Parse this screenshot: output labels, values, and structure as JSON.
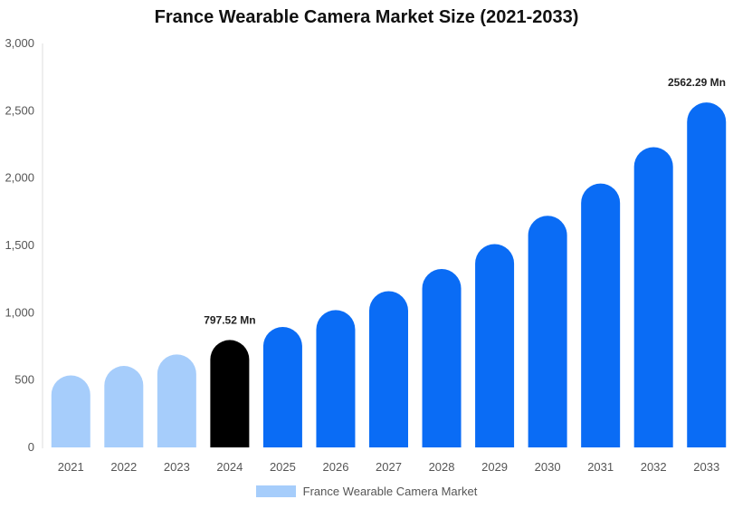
{
  "chart_data": {
    "type": "bar",
    "title": "France Wearable Camera Market Size (2021-2033)",
    "categories": [
      "2021",
      "2022",
      "2023",
      "2024",
      "2025",
      "2026",
      "2027",
      "2028",
      "2029",
      "2030",
      "2031",
      "2032",
      "2033"
    ],
    "series": [
      {
        "name": "France Wearable Camera Market",
        "values": [
          535,
          605,
          690,
          797.52,
          895,
          1020,
          1160,
          1325,
          1510,
          1720,
          1960,
          2230,
          2562.29
        ]
      }
    ],
    "ylim": [
      0,
      3000
    ],
    "yticks": [
      "0",
      "500",
      "1,000",
      "1,500",
      "2,000",
      "2,500",
      "3,000"
    ],
    "ytick_values": [
      0,
      500,
      1000,
      1500,
      2000,
      2500,
      3000
    ],
    "grid": false,
    "legend_position": "bottom",
    "annotations": [
      {
        "category": "2024",
        "text": "797.52 Mn"
      },
      {
        "category": "2033",
        "text": "2562.29 Mn"
      }
    ],
    "colors": {
      "historical": "#a6cdfb",
      "current": "#000000",
      "forecast": "#0a6cf5",
      "legend": "#a6cdfb"
    },
    "bar_color_roles": [
      "historical",
      "historical",
      "historical",
      "current",
      "forecast",
      "forecast",
      "forecast",
      "forecast",
      "forecast",
      "forecast",
      "forecast",
      "forecast",
      "forecast"
    ]
  }
}
